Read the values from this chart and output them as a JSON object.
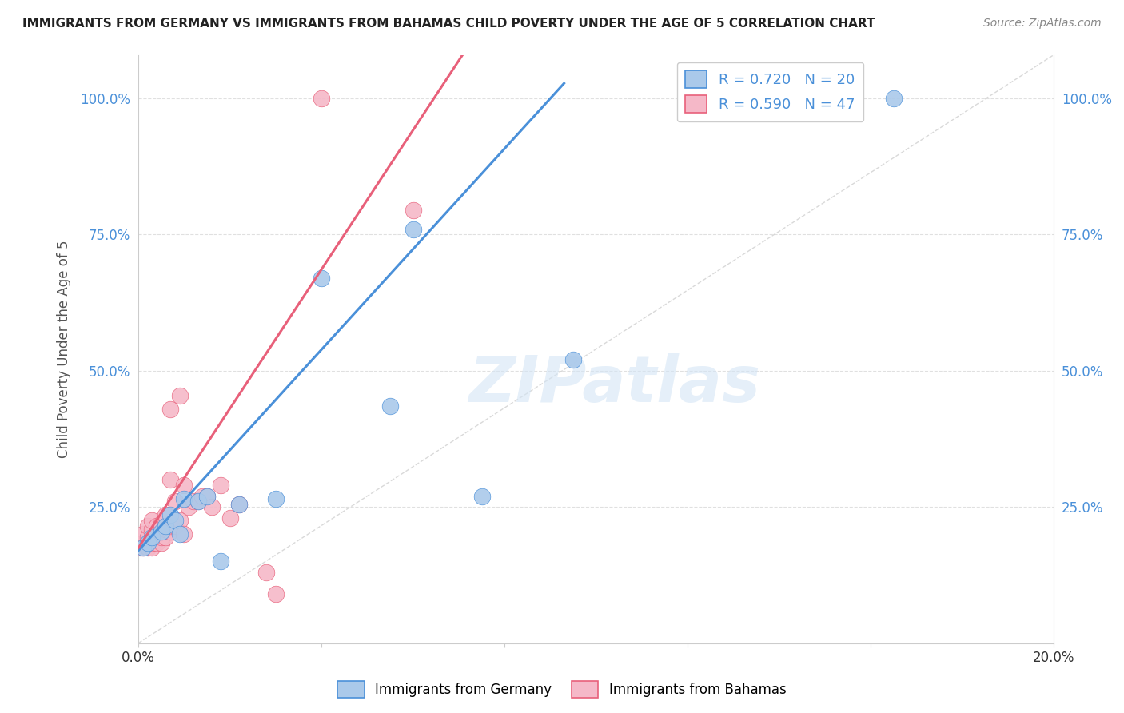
{
  "title": "IMMIGRANTS FROM GERMANY VS IMMIGRANTS FROM BAHAMAS CHILD POVERTY UNDER THE AGE OF 5 CORRELATION CHART",
  "source": "Source: ZipAtlas.com",
  "ylabel": "Child Poverty Under the Age of 5",
  "xlim": [
    0.0,
    0.2
  ],
  "ylim": [
    0.0,
    1.08
  ],
  "ytick_positions": [
    0.0,
    0.25,
    0.5,
    0.75,
    1.0
  ],
  "ytick_labels_left": [
    "",
    "25.0%",
    "50.0%",
    "75.0%",
    "100.0%"
  ],
  "ytick_labels_right": [
    "",
    "25.0%",
    "50.0%",
    "75.0%",
    "100.0%"
  ],
  "xtick_positions": [
    0.0,
    0.04,
    0.08,
    0.12,
    0.16,
    0.2
  ],
  "xtick_labels": [
    "0.0%",
    "",
    "",
    "",
    "",
    "20.0%"
  ],
  "germany_color": "#aac9ea",
  "bahamas_color": "#f5b8c8",
  "germany_line_color": "#4a90d9",
  "bahamas_line_color": "#e8607a",
  "legend_text_color": "#4a90d9",
  "axis_label_color": "#4a90d9",
  "germany_R": 0.72,
  "germany_N": 20,
  "bahamas_R": 0.59,
  "bahamas_N": 47,
  "watermark": "ZIPatlas",
  "germany_x": [
    0.001,
    0.002,
    0.003,
    0.005,
    0.006,
    0.007,
    0.008,
    0.009,
    0.01,
    0.013,
    0.015,
    0.018,
    0.022,
    0.03,
    0.04,
    0.055,
    0.06,
    0.075,
    0.095,
    0.165
  ],
  "germany_y": [
    0.175,
    0.185,
    0.195,
    0.205,
    0.215,
    0.235,
    0.225,
    0.2,
    0.265,
    0.26,
    0.27,
    0.15,
    0.255,
    0.265,
    0.67,
    0.435,
    0.76,
    0.27,
    0.52,
    1.0
  ],
  "bahamas_x": [
    0.0005,
    0.001,
    0.001,
    0.001,
    0.002,
    0.002,
    0.002,
    0.002,
    0.003,
    0.003,
    0.003,
    0.003,
    0.003,
    0.004,
    0.004,
    0.004,
    0.005,
    0.005,
    0.005,
    0.005,
    0.006,
    0.006,
    0.006,
    0.006,
    0.007,
    0.007,
    0.007,
    0.007,
    0.008,
    0.008,
    0.009,
    0.009,
    0.01,
    0.01,
    0.011,
    0.012,
    0.013,
    0.014,
    0.015,
    0.016,
    0.018,
    0.02,
    0.022,
    0.028,
    0.03,
    0.04,
    0.06
  ],
  "bahamas_y": [
    0.175,
    0.175,
    0.185,
    0.2,
    0.175,
    0.185,
    0.195,
    0.215,
    0.175,
    0.185,
    0.195,
    0.21,
    0.225,
    0.185,
    0.2,
    0.215,
    0.185,
    0.195,
    0.21,
    0.22,
    0.195,
    0.21,
    0.22,
    0.235,
    0.205,
    0.215,
    0.3,
    0.43,
    0.215,
    0.26,
    0.225,
    0.455,
    0.2,
    0.29,
    0.25,
    0.26,
    0.26,
    0.27,
    0.27,
    0.25,
    0.29,
    0.23,
    0.255,
    0.13,
    0.09,
    1.0,
    0.795
  ],
  "diag_line_color": "#d0d0d0",
  "grid_color": "#e0e0e0"
}
